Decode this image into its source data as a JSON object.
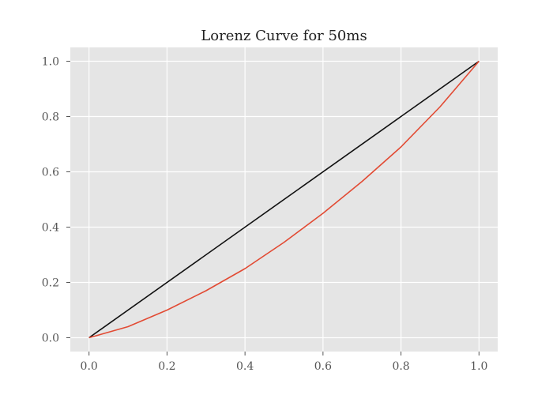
{
  "chart_data": {
    "type": "line",
    "title": "Lorenz Curve for 50ms",
    "xlabel": "",
    "ylabel": "",
    "xlim": [
      -0.048,
      1.048
    ],
    "ylim": [
      -0.05,
      1.05
    ],
    "x_ticks": [
      0.0,
      0.2,
      0.4,
      0.6,
      0.8,
      1.0
    ],
    "x_tick_labels": [
      "0.0",
      "0.2",
      "0.4",
      "0.6",
      "0.8",
      "1.0"
    ],
    "y_ticks": [
      0.0,
      0.2,
      0.4,
      0.6,
      0.8,
      1.0
    ],
    "y_tick_labels": [
      "0.0",
      "0.2",
      "0.4",
      "0.6",
      "0.8",
      "1.0"
    ],
    "grid": true,
    "legend": "none",
    "series": [
      {
        "color": "#111111",
        "x": [
          0.0,
          1.0
        ],
        "y": [
          0.0,
          1.0
        ]
      },
      {
        "color": "#e24a33",
        "x": [
          0.0,
          0.1,
          0.2,
          0.3,
          0.4,
          0.5,
          0.6,
          0.7,
          0.8,
          0.9,
          1.0
        ],
        "y": [
          0.0,
          0.04,
          0.1,
          0.17,
          0.25,
          0.345,
          0.45,
          0.565,
          0.69,
          0.835,
          1.0
        ]
      }
    ]
  },
  "colors": {
    "plot_background": "#e5e5e5",
    "grid": "#ffffff",
    "tick_text": "#555555"
  }
}
